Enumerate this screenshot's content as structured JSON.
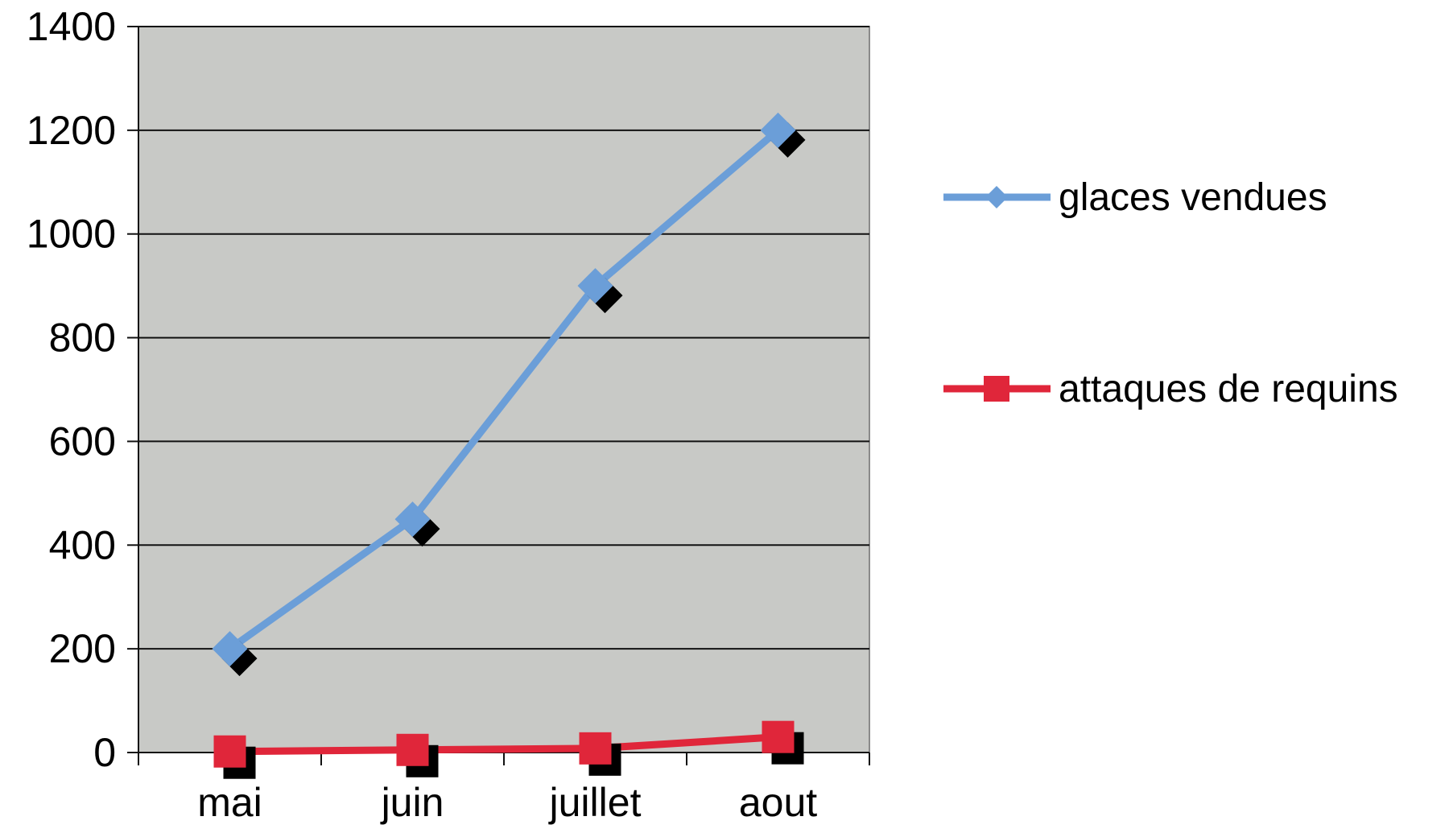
{
  "chart_data": {
    "type": "line",
    "categories": [
      "mai",
      "juin",
      "juillet",
      "aout"
    ],
    "series": [
      {
        "name": "glaces vendues",
        "values": [
          200,
          450,
          900,
          1200
        ],
        "color": "#6b9ed8",
        "marker": "diamond"
      },
      {
        "name": "attaques de requins",
        "values": [
          2,
          5,
          8,
          30
        ],
        "color": "#e0263a",
        "marker": "square"
      }
    ],
    "ylim": [
      0,
      1400
    ],
    "yticks": [
      0,
      200,
      400,
      600,
      800,
      1000,
      1200,
      1400
    ],
    "title": "",
    "xlabel": "",
    "ylabel": "",
    "grid": true,
    "plot_background": "#c8c9c6",
    "legend_position": "right"
  }
}
